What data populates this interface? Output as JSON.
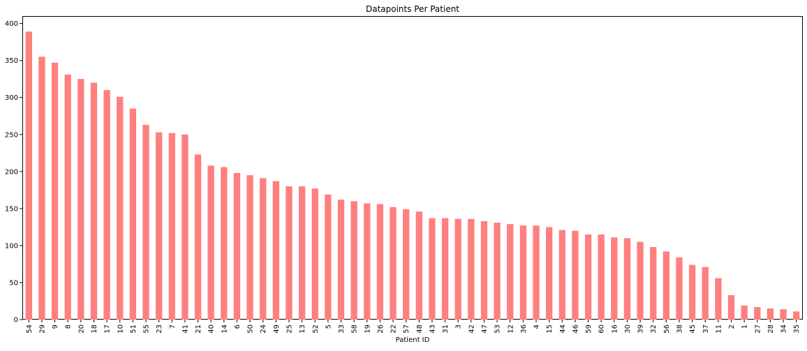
{
  "chart_data": {
    "type": "bar",
    "title": "Datapoints Per Patient",
    "xlabel": "Patient ID",
    "ylabel": "",
    "ylim": [
      0,
      410
    ],
    "yticks": [
      0,
      50,
      100,
      150,
      200,
      250,
      300,
      350,
      400
    ],
    "grid": false,
    "legend": "none",
    "bar_color": "#ff7f7f",
    "categories": [
      "54",
      "29",
      "9",
      "8",
      "20",
      "18",
      "17",
      "10",
      "51",
      "55",
      "23",
      "7",
      "41",
      "21",
      "40",
      "14",
      "6",
      "50",
      "24",
      "49",
      "25",
      "13",
      "52",
      "5",
      "33",
      "58",
      "19",
      "26",
      "22",
      "57",
      "48",
      "43",
      "31",
      "3",
      "42",
      "47",
      "53",
      "12",
      "36",
      "4",
      "15",
      "44",
      "46",
      "59",
      "60",
      "16",
      "30",
      "39",
      "32",
      "56",
      "38",
      "45",
      "37",
      "11",
      "2",
      "1",
      "27",
      "28",
      "34",
      "35"
    ],
    "values": [
      389,
      355,
      347,
      331,
      325,
      320,
      310,
      301,
      285,
      263,
      253,
      252,
      250,
      223,
      208,
      206,
      198,
      195,
      191,
      187,
      180,
      180,
      177,
      169,
      162,
      160,
      157,
      156,
      152,
      149,
      146,
      137,
      137,
      136,
      136,
      133,
      131,
      129,
      127,
      127,
      125,
      121,
      120,
      115,
      115,
      111,
      110,
      105,
      98,
      92,
      84,
      74,
      71,
      56,
      33,
      19,
      17,
      15,
      14,
      11
    ]
  }
}
